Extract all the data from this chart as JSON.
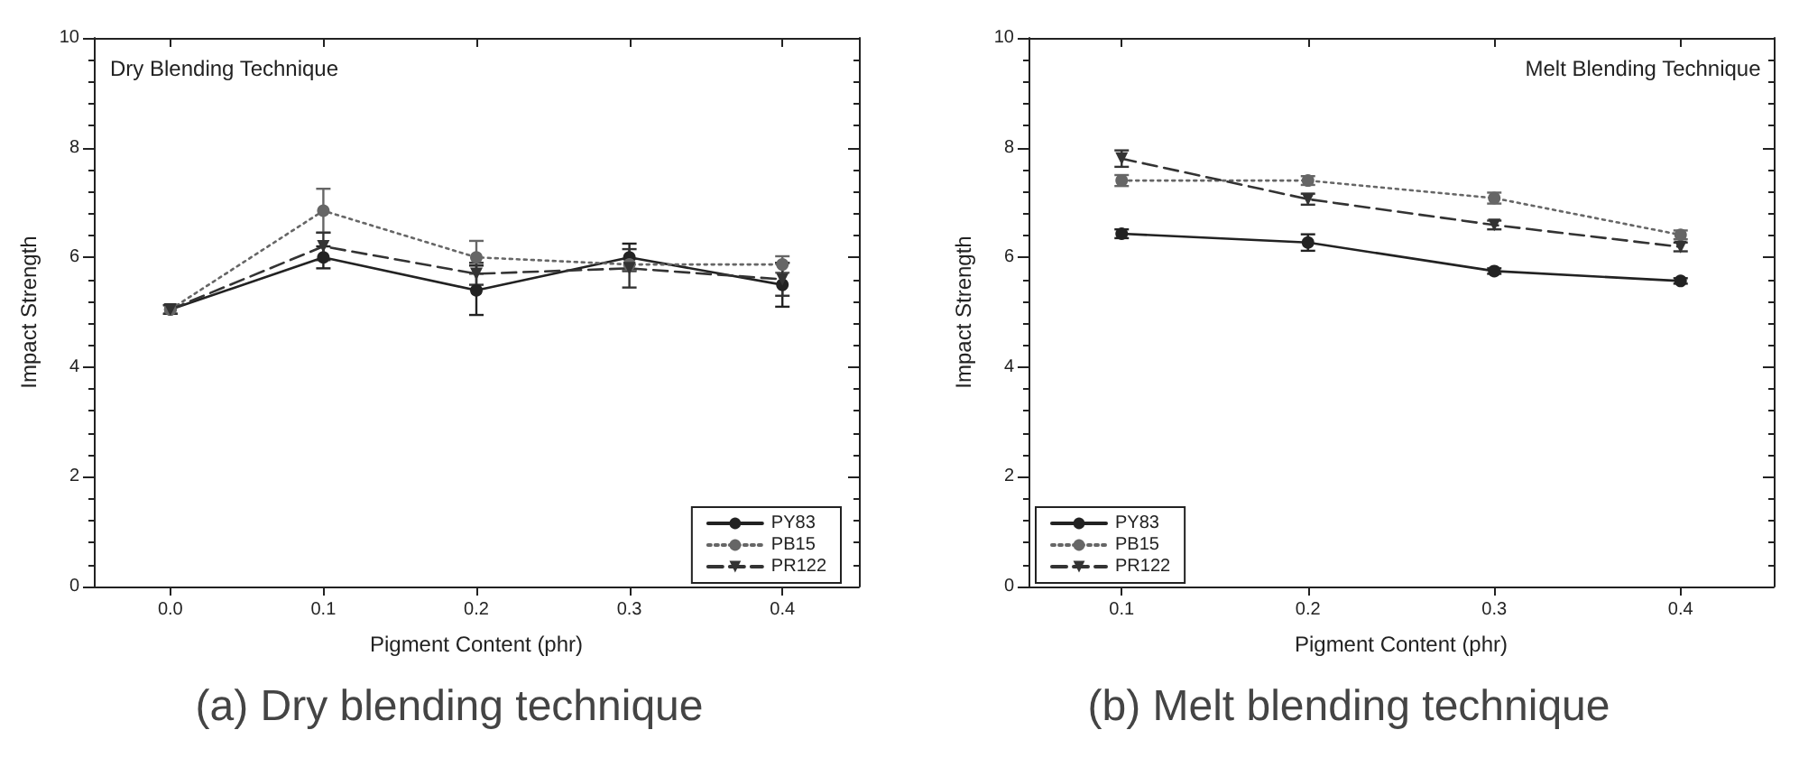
{
  "chart_data": [
    {
      "type": "line",
      "title": "Dry Blending Technique",
      "xlabel": "Pigment Content (phr)",
      "ylabel": "Impact Strength",
      "annotations": [
        "(a) Dry blending technique"
      ],
      "x": [
        0,
        0.1,
        0.2,
        0.3,
        0.4
      ],
      "series": [
        {
          "name": "PY83",
          "color": "#222222",
          "marker": "circle",
          "line_style": "solid",
          "values": [
            5.05,
            6.0,
            5.4,
            6.0,
            5.5
          ],
          "errors": [
            0.08,
            0.2,
            0.45,
            0.25,
            0.4
          ]
        },
        {
          "name": "PB15",
          "color": "#666666",
          "marker": "circle",
          "line_style": "dotted",
          "values": [
            5.05,
            6.85,
            6.0,
            5.87,
            5.87
          ],
          "errors": [
            0.08,
            0.4,
            0.3,
            0.1,
            0.15
          ]
        },
        {
          "name": "PR122",
          "color": "#333333",
          "marker": "triangle",
          "line_style": "dashed",
          "values": [
            5.05,
            6.2,
            5.7,
            5.8,
            5.6
          ],
          "errors": [
            0.08,
            0.25,
            0.2,
            0.35,
            0.3
          ]
        }
      ],
      "xlim": [
        -0.05,
        0.45
      ],
      "xticks": [
        {
          "value": 0,
          "label": "0.0"
        },
        0.1,
        0.2,
        0.3,
        0.4
      ],
      "ylim": [
        0,
        10
      ],
      "yticks": [
        0,
        2,
        4,
        6,
        8,
        10
      ],
      "grid": false,
      "legend": "bottom right"
    },
    {
      "type": "line",
      "title": "Melt Blending Technique",
      "xlabel": "Pigment Content (phr)",
      "ylabel": "Impact Strength",
      "annotations": [
        "(b) Melt blending technique"
      ],
      "x": [
        0.1,
        0.2,
        0.3,
        0.4
      ],
      "series": [
        {
          "name": "PY83",
          "color": "#222222",
          "marker": "circle",
          "line_style": "solid",
          "values": [
            6.43,
            6.27,
            5.75,
            5.57
          ],
          "errors": [
            0.08,
            0.15,
            0.05,
            0.05
          ]
        },
        {
          "name": "PB15",
          "color": "#666666",
          "marker": "circle",
          "line_style": "dotted",
          "values": [
            7.4,
            7.4,
            7.08,
            6.41
          ],
          "errors": [
            0.1,
            0.08,
            0.1,
            0.08
          ]
        },
        {
          "name": "PR122",
          "color": "#333333",
          "marker": "triangle",
          "line_style": "dashed",
          "values": [
            7.8,
            7.06,
            6.59,
            6.19
          ],
          "errors": [
            0.15,
            0.1,
            0.08,
            0.08
          ]
        }
      ],
      "xlim": [
        0.05,
        0.45
      ],
      "xticks": [
        0.1,
        0.2,
        0.3,
        0.4
      ],
      "ylim": [
        0,
        10
      ],
      "yticks": [
        0,
        2,
        4,
        6,
        8,
        10
      ],
      "grid": false,
      "legend": "bottom left"
    }
  ]
}
